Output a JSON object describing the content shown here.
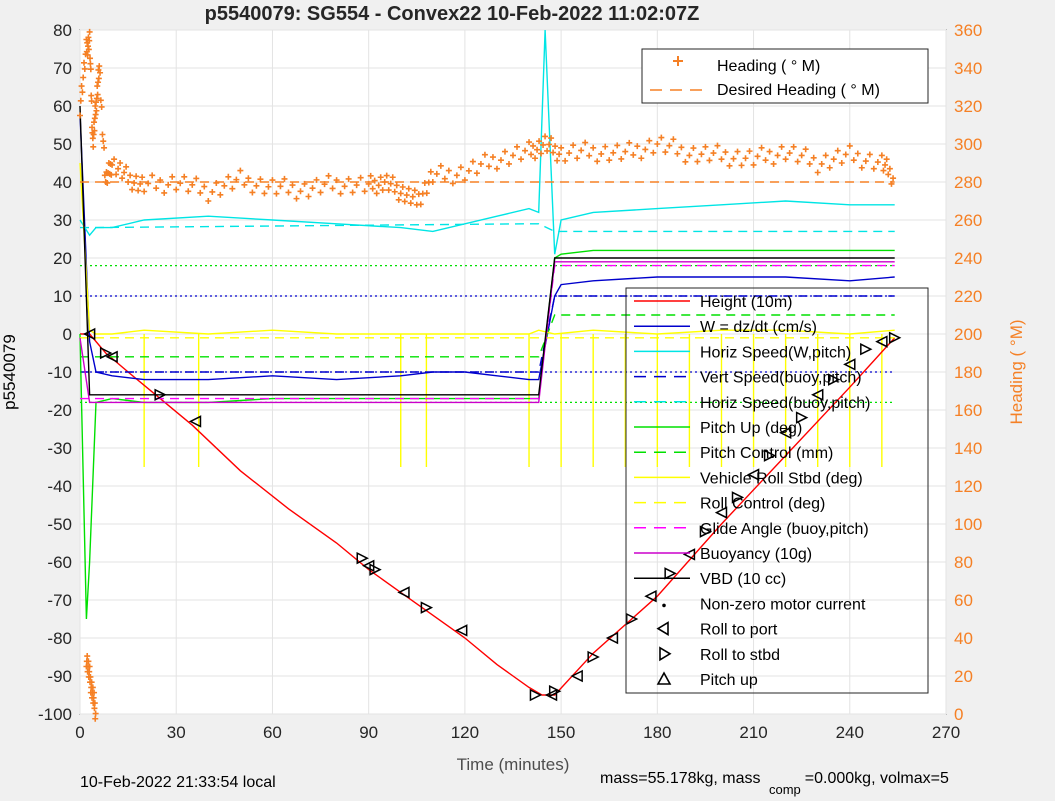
{
  "chart_data": {
    "type": "line",
    "title": "p5540079: SG554 - Convex22 10-Feb-2022 11:02:07Z",
    "xlabel": "Time (minutes)",
    "ylabel_left": "p5540079",
    "ylabel_right": "Heading (  °M)",
    "xlim": [
      0,
      270
    ],
    "ylim_left": [
      -100,
      80
    ],
    "ylim_right": [
      0,
      360
    ],
    "x_ticks": [
      "0",
      "30",
      "60",
      "90",
      "120",
      "150",
      "180",
      "210",
      "240",
      "270"
    ],
    "y_ticks_left": [
      "80",
      "70",
      "60",
      "50",
      "40",
      "30",
      "20",
      "10",
      "0",
      "-10",
      "-20",
      "-30",
      "-40",
      "-50",
      "-60",
      "-70",
      "-80",
      "-90",
      "-100"
    ],
    "y_ticks_right": [
      "360",
      "340",
      "320",
      "300",
      "280",
      "260",
      "240",
      "220",
      "200",
      "180",
      "160",
      "140",
      "120",
      "100",
      "80",
      "60",
      "40",
      "20",
      "0"
    ],
    "grid": true,
    "legend_heading": [
      {
        "name": "Heading (  ° M)",
        "color": "#f58025",
        "style": "plus"
      },
      {
        "name": "Desired Heading (    ° M)",
        "color": "#f58025",
        "style": "dashed"
      }
    ],
    "legend_main": [
      {
        "name": "Height (10m)",
        "color": "#ff0000",
        "style": "solid"
      },
      {
        "name": "W = dz/dt (cm/s)",
        "color": "#0000cc",
        "style": "solid"
      },
      {
        "name": "Horiz Speed(W,pitch)",
        "color": "#00e5e5",
        "style": "solid"
      },
      {
        "name": "Vert Speed(buoy,pitch)",
        "color": "#0000cc",
        "style": "dashed"
      },
      {
        "name": "Horiz Speed(buoy,pitch)",
        "color": "#00e5e5",
        "style": "dashed"
      },
      {
        "name": "Pitch Up (deg)",
        "color": "#00e000",
        "style": "solid"
      },
      {
        "name": "Pitch Control (mm)",
        "color": "#00e000",
        "style": "dashed"
      },
      {
        "name": "Vehicle Roll Stbd (deg)",
        "color": "#ffff00",
        "style": "solid"
      },
      {
        "name": "Roll Control (deg)",
        "color": "#ffff00",
        "style": "dashed"
      },
      {
        "name": "Glide Angle (buoy,pitch)",
        "color": "#ff00ff",
        "style": "dashed"
      },
      {
        "name": "Buoyancy (10g)",
        "color": "#cc00cc",
        "style": "solid"
      },
      {
        "name": "VBD (10 cc)",
        "color": "#000000",
        "style": "solid"
      },
      {
        "name": "Non-zero motor current",
        "color": "#000000",
        "style": "dot"
      },
      {
        "name": "Roll to port",
        "color": "#000000",
        "style": "tri-left"
      },
      {
        "name": "Roll to stbd",
        "color": "#000000",
        "style": "tri-right"
      },
      {
        "name": "Pitch up",
        "color": "#000000",
        "style": "tri-up"
      }
    ],
    "series": [
      {
        "name": "Height (10m)",
        "axis": "left",
        "color": "#ff0000",
        "x": [
          0,
          3,
          8,
          15,
          25,
          35,
          50,
          65,
          80,
          90,
          100,
          110,
          120,
          130,
          140,
          144,
          148,
          160,
          180,
          200,
          220,
          240,
          254
        ],
        "y": [
          0,
          0,
          -5,
          -10,
          -17,
          -24,
          -36,
          -46,
          -55,
          -62,
          -68,
          -74,
          -80,
          -87,
          -93,
          -95,
          -95,
          -84,
          -69,
          -50,
          -32,
          -14,
          -1
        ]
      },
      {
        "name": "W = dz/dt (cm/s)",
        "axis": "left",
        "color": "#0000cc",
        "x": [
          0,
          3,
          5,
          10,
          20,
          40,
          60,
          80,
          100,
          110,
          120,
          130,
          140,
          143,
          148,
          150,
          160,
          180,
          200,
          220,
          240,
          254
        ],
        "y": [
          58,
          -2,
          -10,
          -11,
          -12,
          -12,
          -11,
          -12,
          -11,
          -10,
          -10,
          -11,
          -12,
          -12,
          10,
          13,
          14,
          15,
          15,
          15,
          14,
          15
        ]
      },
      {
        "name": "Horiz Speed(W,pitch)",
        "axis": "left",
        "color": "#00e5e5",
        "x": [
          0,
          3,
          5,
          10,
          20,
          40,
          60,
          80,
          100,
          110,
          120,
          130,
          140,
          143,
          145,
          148,
          150,
          160,
          180,
          200,
          220,
          240,
          254
        ],
        "y": [
          30,
          26,
          28,
          28,
          30,
          31,
          30,
          29,
          28,
          27,
          29,
          31,
          33,
          32,
          80,
          21,
          30,
          32,
          33,
          34,
          35,
          34,
          34
        ]
      },
      {
        "name": "Vert Speed(buoy,pitch)",
        "axis": "left",
        "color": "#0000cc",
        "dashed": true,
        "x": [
          0,
          3,
          140,
          143,
          148,
          254
        ],
        "y": [
          -10,
          -10,
          -10,
          -10,
          10,
          10
        ]
      },
      {
        "name": "Horiz Speed(buoy,pitch)",
        "axis": "left",
        "color": "#00e5e5",
        "dashed": true,
        "x": [
          0,
          3,
          140,
          143,
          148,
          254
        ],
        "y": [
          28,
          28,
          29,
          29,
          27,
          27
        ]
      },
      {
        "name": "Pitch Up (deg)",
        "axis": "left",
        "color": "#00e000",
        "x": [
          0,
          2,
          3,
          5,
          10,
          20,
          40,
          60,
          80,
          100,
          120,
          140,
          143,
          148,
          150,
          160,
          180,
          200,
          220,
          240,
          254
        ],
        "y": [
          0,
          -75,
          -60,
          -18,
          -17,
          -18,
          -18,
          -17,
          -17,
          -17,
          -17,
          -17,
          -17,
          20,
          21,
          22,
          22,
          22,
          22,
          22,
          22
        ]
      },
      {
        "name": "Pitch Control (mm)",
        "axis": "left",
        "color": "#00e000",
        "dashed": true,
        "x": [
          0,
          3,
          143,
          148,
          254
        ],
        "y": [
          -6,
          -6,
          -6,
          5,
          5
        ]
      },
      {
        "name": "Vehicle Roll Stbd (deg)",
        "axis": "left",
        "color": "#ffff00",
        "x": [
          0,
          3,
          5,
          10,
          20,
          40,
          60,
          80,
          100,
          120,
          140,
          143,
          148,
          160,
          180,
          200,
          220,
          240,
          254
        ],
        "y": [
          45,
          1,
          0,
          0,
          1,
          0,
          1,
          0,
          0,
          0,
          0,
          1,
          0,
          1,
          0,
          1,
          1,
          0,
          1
        ]
      },
      {
        "name": "Roll Control (deg)",
        "axis": "left",
        "color": "#ffff00",
        "dashed": true,
        "x": [
          0,
          254
        ],
        "y": [
          -1,
          -1
        ]
      },
      {
        "name": "Glide Angle (buoy,pitch)",
        "axis": "left",
        "color": "#ff00ff",
        "dashed": true,
        "x": [
          0,
          143,
          148,
          254
        ],
        "y": [
          -17,
          -17,
          18,
          18
        ]
      },
      {
        "name": "Buoyancy (10g)",
        "axis": "left",
        "color": "#cc00cc",
        "x": [
          0,
          3,
          143,
          148,
          254
        ],
        "y": [
          -1,
          -18,
          -18,
          19,
          19
        ]
      },
      {
        "name": "VBD (10 cc)",
        "axis": "left",
        "color": "#000000",
        "x": [
          0,
          3,
          5,
          143,
          148,
          254
        ],
        "y": [
          60,
          -16,
          -16,
          -16,
          20,
          20
        ]
      },
      {
        "name": "Desired Heading (    ° M)",
        "axis": "right",
        "color": "#f58025",
        "dashed": true,
        "x": [
          0,
          254
        ],
        "y": [
          280,
          280
        ]
      },
      {
        "name": "Heading (  ° M)",
        "axis": "right",
        "color": "#f58025",
        "markers": "plus",
        "x": [
          0,
          2,
          3,
          4,
          5,
          6,
          8,
          10,
          15,
          20,
          30,
          40,
          50,
          60,
          70,
          80,
          90,
          95,
          100,
          105,
          110,
          120,
          130,
          140,
          145,
          150,
          160,
          170,
          180,
          190,
          200,
          210,
          220,
          230,
          240,
          250,
          254
        ],
        "y": [
          320,
          350,
          355,
          300,
          320,
          340,
          280,
          290,
          282,
          278,
          280,
          275,
          281,
          277,
          276,
          279,
          278,
          280,
          275,
          270,
          283,
          285,
          292,
          296,
          300,
          295,
          296,
          295,
          300,
          295,
          294,
          292,
          296,
          290,
          294,
          290,
          282
        ]
      },
      {
        "name": "Heading (  ° M)",
        "axis": "right",
        "color": "#f58025",
        "markers": "plus",
        "x": [
          2,
          3,
          4,
          5
        ],
        "y": [
          30,
          20,
          10,
          0
        ]
      }
    ],
    "horizontal_reference_lines": [
      {
        "y": 18,
        "color": "#00e000"
      },
      {
        "y": 10,
        "color": "#0000cc"
      },
      {
        "y": -10,
        "color": "#0000cc"
      },
      {
        "y": -18,
        "color": "#00e000"
      }
    ],
    "roll_spike_times": [
      20,
      37,
      100,
      108,
      140,
      150,
      160,
      170,
      180,
      190,
      200,
      210,
      220,
      230,
      240,
      250
    ],
    "marker_points": [
      {
        "t": 3,
        "y": 0
      },
      {
        "t": 8,
        "y": -5
      },
      {
        "t": 10,
        "y": -6
      },
      {
        "t": 25,
        "y": -16
      },
      {
        "t": 36,
        "y": -23
      },
      {
        "t": 88,
        "y": -59
      },
      {
        "t": 90,
        "y": -61
      },
      {
        "t": 92,
        "y": -62
      },
      {
        "t": 101,
        "y": -68
      },
      {
        "t": 108,
        "y": -72
      },
      {
        "t": 119,
        "y": -78
      },
      {
        "t": 142,
        "y": -95
      },
      {
        "t": 147,
        "y": -95
      },
      {
        "t": 148,
        "y": -94
      },
      {
        "t": 155,
        "y": -90
      },
      {
        "t": 160,
        "y": -85
      },
      {
        "t": 166,
        "y": -80
      },
      {
        "t": 172,
        "y": -75
      },
      {
        "t": 178,
        "y": -69
      },
      {
        "t": 184,
        "y": -63
      },
      {
        "t": 190,
        "y": -58
      },
      {
        "t": 195,
        "y": -52
      },
      {
        "t": 200,
        "y": -47
      },
      {
        "t": 205,
        "y": -43
      },
      {
        "t": 210,
        "y": -37
      },
      {
        "t": 215,
        "y": -32
      },
      {
        "t": 220,
        "y": -26
      },
      {
        "t": 225,
        "y": -22
      },
      {
        "t": 230,
        "y": -16
      },
      {
        "t": 235,
        "y": -12
      },
      {
        "t": 240,
        "y": -8
      },
      {
        "t": 245,
        "y": -4
      },
      {
        "t": 250,
        "y": -2
      },
      {
        "t": 254,
        "y": -1
      }
    ]
  },
  "footer": {
    "left": "10-Feb-2022 21:33:54 local",
    "right_a": "mass=55.178kg, mass",
    "right_sub": "comp",
    "right_b": "=0.000kg, volmax=5"
  }
}
